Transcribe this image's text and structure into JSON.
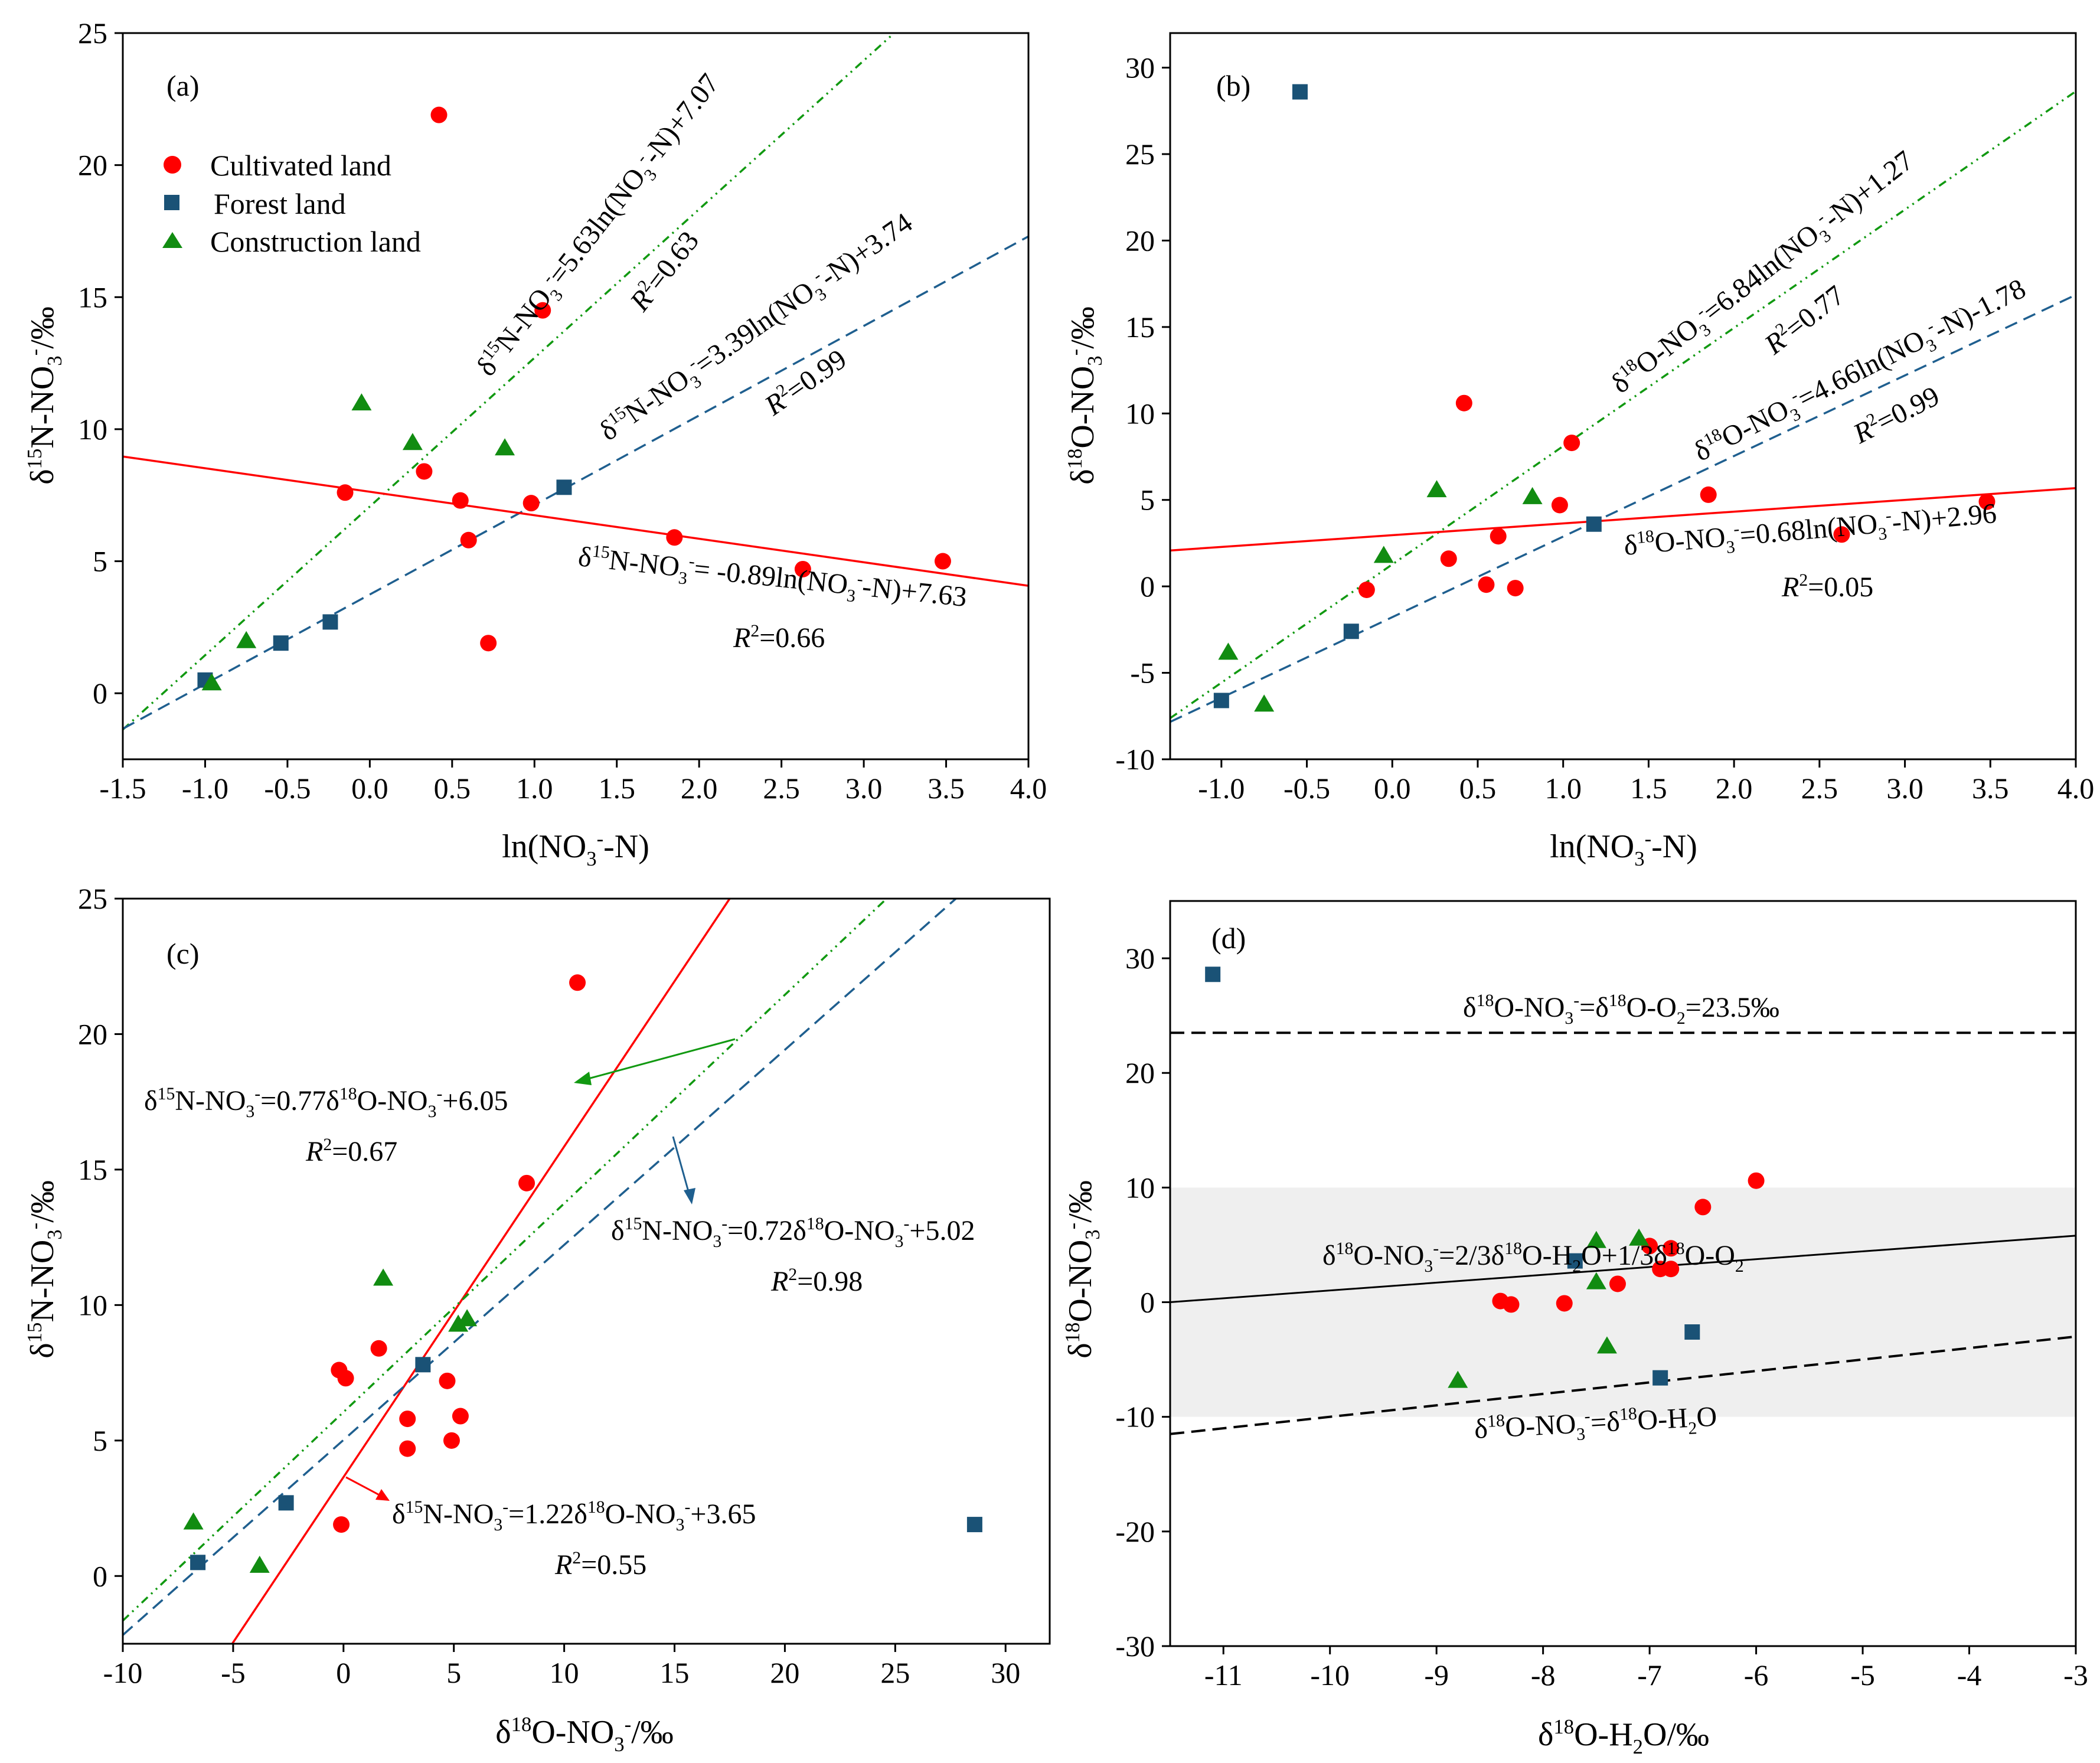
{
  "colors": {
    "cultivated": "#ff0000",
    "forest": "#1a5276",
    "construction": "#118c11",
    "fit_cultivated": "#ff0000",
    "fit_forest": "#1f5f8f",
    "fit_construction": "#119911",
    "shade": "#efefef"
  },
  "legend": [
    {
      "label": "Cultivated land",
      "marker": "circle",
      "key": "cultivated"
    },
    {
      "label": "Forest land",
      "marker": "square",
      "key": "forest"
    },
    {
      "label": "Construction land",
      "marker": "triangle",
      "key": "construction"
    }
  ],
  "chart_data": [
    {
      "panel": "(a)",
      "type": "scatter",
      "xlim": [
        -1.5,
        4.0
      ],
      "ylim": [
        -2.5,
        25
      ],
      "xticks": [
        -1.5,
        -1.0,
        -0.5,
        0.0,
        0.5,
        1.0,
        1.5,
        2.0,
        2.5,
        3.0,
        3.5,
        4.0
      ],
      "xtick_labels": [
        "-1.5",
        "-1.0",
        "-0.5",
        "0.0",
        "0.5",
        "1.0",
        "1.5",
        "2.0",
        "2.5",
        "3.0",
        "3.5",
        "4.0"
      ],
      "yticks": [
        0,
        5,
        10,
        15,
        20,
        25
      ],
      "ytick_labels": [
        "0",
        "5",
        "10",
        "15",
        "20",
        "25"
      ],
      "xlabel": {
        "pre": "ln(NO",
        "sub": "3",
        "sup": "-",
        "post": "-N)"
      },
      "ylabel": {
        "pre": "δ",
        "sup": "15",
        "post": "N-NO",
        "sub": "3",
        "sup2": "-",
        "tail": "/‰"
      },
      "series": [
        {
          "key": "cultivated",
          "points": [
            [
              0.42,
              21.9
            ],
            [
              1.05,
              14.5
            ],
            [
              0.33,
              8.4
            ],
            [
              -0.15,
              7.6
            ],
            [
              0.55,
              7.3
            ],
            [
              0.98,
              7.2
            ],
            [
              0.6,
              5.8
            ],
            [
              1.85,
              5.9
            ],
            [
              2.63,
              4.7
            ],
            [
              3.48,
              5.0
            ],
            [
              0.72,
              1.9
            ]
          ]
        },
        {
          "key": "forest",
          "points": [
            [
              1.18,
              7.8
            ],
            [
              -0.24,
              2.7
            ],
            [
              -0.54,
              1.9
            ],
            [
              -1.0,
              0.5
            ]
          ]
        },
        {
          "key": "construction",
          "points": [
            [
              -0.05,
              11.0
            ],
            [
              0.26,
              9.5
            ],
            [
              0.82,
              9.3
            ],
            [
              -0.75,
              2.0
            ],
            [
              -0.96,
              0.4
            ]
          ]
        }
      ],
      "fits": [
        {
          "key": "construction",
          "slope": 5.63,
          "intercept": 7.07,
          "x_range": [
            -1.5,
            4.0
          ],
          "style": "dashdot",
          "label": {
            "pre": "δ",
            "sup": "15",
            "mid": "N-NO",
            "sub": "3",
            "sup2": "-",
            "eq": "=5.63ln(NO",
            "sub2": "3",
            "sup3": "-",
            "tail": "-N)+7.07"
          },
          "r2": "=0.63"
        },
        {
          "key": "forest",
          "slope": 3.39,
          "intercept": 3.74,
          "x_range": [
            -1.5,
            4.0
          ],
          "style": "dashed",
          "label": {
            "pre": "δ",
            "sup": "15",
            "mid": "N-NO",
            "sub": "3",
            "sup2": "-",
            "eq": "=3.39ln(NO",
            "sub2": "3",
            "sup3": "-",
            "tail": "-N)+3.74"
          },
          "r2": "=0.99"
        },
        {
          "key": "cultivated",
          "slope": -0.89,
          "intercept": 7.63,
          "x_range": [
            -1.5,
            4.0
          ],
          "style": "solid",
          "label": {
            "pre": "δ",
            "sup": "15",
            "mid": "N-NO",
            "sub": "3",
            "sup2": "-",
            "eq": "= -0.89ln(NO",
            "sub2": "3",
            "sup3": "-",
            "tail": "-N)+7.63"
          },
          "r2": "=0.66"
        }
      ]
    },
    {
      "panel": "(b)",
      "type": "scatter",
      "xlim": [
        -1.3,
        4.0
      ],
      "ylim": [
        -10,
        32
      ],
      "xticks": [
        -1.0,
        -0.5,
        0.0,
        0.5,
        1.0,
        1.5,
        2.0,
        2.5,
        3.0,
        3.5,
        4.0
      ],
      "xtick_labels": [
        "-1.0",
        "-0.5",
        "0.0",
        "0.5",
        "1.0",
        "1.5",
        "2.0",
        "2.5",
        "3.0",
        "3.5",
        "4.0"
      ],
      "yticks": [
        -10,
        -5,
        0,
        5,
        10,
        15,
        20,
        25,
        30
      ],
      "ytick_labels": [
        "-10",
        "-5",
        "0",
        "5",
        "10",
        "15",
        "20",
        "25",
        "30"
      ],
      "xlabel": {
        "pre": "ln(NO",
        "sub": "3",
        "sup": "-",
        "post": "-N)"
      },
      "ylabel": {
        "pre": "δ",
        "sup": "18",
        "post": "O-NO",
        "sub": "3",
        "sup2": "-",
        "tail": "/‰"
      },
      "series": [
        {
          "key": "cultivated",
          "points": [
            [
              0.42,
              10.6
            ],
            [
              1.05,
              8.3
            ],
            [
              0.98,
              4.7
            ],
            [
              0.62,
              2.9
            ],
            [
              0.33,
              1.6
            ],
            [
              -0.15,
              -0.2
            ],
            [
              0.55,
              0.1
            ],
            [
              0.72,
              -0.1
            ],
            [
              1.85,
              5.3
            ],
            [
              2.63,
              3.0
            ],
            [
              3.48,
              4.9
            ]
          ]
        },
        {
          "key": "forest",
          "points": [
            [
              -0.54,
              28.6
            ],
            [
              1.18,
              3.6
            ],
            [
              -0.24,
              -2.6
            ],
            [
              -1.0,
              -6.6
            ]
          ]
        },
        {
          "key": "construction",
          "points": [
            [
              0.26,
              5.6
            ],
            [
              0.82,
              5.2
            ],
            [
              -0.05,
              1.8
            ],
            [
              -0.96,
              -3.8
            ],
            [
              -0.75,
              -6.8
            ]
          ]
        }
      ],
      "fits": [
        {
          "key": "construction",
          "slope": 6.84,
          "intercept": 1.27,
          "x_range": [
            -1.3,
            4.0
          ],
          "style": "dashdot",
          "label": {
            "pre": "δ",
            "sup": "18",
            "mid": "O-NO",
            "sub": "3",
            "sup2": "-",
            "eq": "=6.84ln(NO",
            "sub2": "3",
            "sup3": "-",
            "tail": "-N)+1.27"
          },
          "r2": "=0.77"
        },
        {
          "key": "forest",
          "slope": 4.66,
          "intercept": -1.78,
          "x_range": [
            -1.3,
            4.0
          ],
          "style": "dashed",
          "label": {
            "pre": "δ",
            "sup": "18",
            "mid": "O-NO",
            "sub": "3",
            "sup2": "-",
            "eq": "=4.66ln(NO",
            "sub2": "3",
            "sup3": "-",
            "tail": "-N)-1.78"
          },
          "r2": "=0.99"
        },
        {
          "key": "cultivated",
          "slope": 0.68,
          "intercept": 2.96,
          "x_range": [
            -1.3,
            4.0
          ],
          "style": "solid",
          "label": {
            "pre": "δ",
            "sup": "18",
            "mid": "O-NO",
            "sub": "3",
            "sup2": "-",
            "eq": "=0.68ln(NO",
            "sub2": "3",
            "sup3": "-",
            "tail": "-N)+2.96"
          },
          "r2": "=0.05"
        }
      ]
    },
    {
      "panel": "(c)",
      "type": "scatter",
      "xlim": [
        -10,
        32
      ],
      "ylim": [
        -2.5,
        25
      ],
      "xticks": [
        -10,
        -5,
        0,
        5,
        10,
        15,
        20,
        25,
        30
      ],
      "xtick_labels": [
        "-10",
        "-5",
        "0",
        "5",
        "10",
        "15",
        "20",
        "25",
        "30"
      ],
      "yticks": [
        0,
        5,
        10,
        15,
        20,
        25
      ],
      "ytick_labels": [
        "0",
        "5",
        "10",
        "15",
        "20",
        "25"
      ],
      "xlabel": {
        "pre": "δ",
        "sup": "18",
        "post": "O-NO",
        "sub": "3",
        "sup2": "-",
        "tail": "/‰"
      },
      "ylabel": {
        "pre": "δ",
        "sup": "15",
        "post": "N-NO",
        "sub": "3",
        "sup2": "-",
        "tail": "/‰"
      },
      "series": [
        {
          "key": "cultivated",
          "points": [
            [
              10.6,
              21.9
            ],
            [
              8.3,
              14.5
            ],
            [
              1.6,
              8.4
            ],
            [
              -0.2,
              7.6
            ],
            [
              0.1,
              7.3
            ],
            [
              4.7,
              7.2
            ],
            [
              2.9,
              5.8
            ],
            [
              5.3,
              5.9
            ],
            [
              2.9,
              4.7
            ],
            [
              4.9,
              5.0
            ],
            [
              -0.1,
              1.9
            ]
          ]
        },
        {
          "key": "forest",
          "points": [
            [
              3.6,
              7.8
            ],
            [
              -2.6,
              2.7
            ],
            [
              28.6,
              1.9
            ],
            [
              -6.6,
              0.5
            ]
          ]
        },
        {
          "key": "construction",
          "points": [
            [
              1.8,
              11.0
            ],
            [
              5.6,
              9.5
            ],
            [
              5.2,
              9.3
            ],
            [
              -6.8,
              2.0
            ],
            [
              -3.8,
              0.4
            ]
          ]
        }
      ],
      "fits": [
        {
          "key": "cultivated",
          "slope": 1.22,
          "intercept": 3.65,
          "x_range": [
            -10,
            32
          ],
          "style": "solid",
          "label": {
            "pre": "δ",
            "sup": "15",
            "mid": "N-NO",
            "sub": "3",
            "sup2": "-",
            "eq": "=1.22δ",
            "sup3": "18",
            "tail": "O-NO",
            "sub2": "3",
            "sup4": "-",
            "end": "+3.65"
          },
          "r2": "=0.55"
        },
        {
          "key": "construction",
          "slope": 0.77,
          "intercept": 6.05,
          "x_range": [
            -10,
            32
          ],
          "style": "dashdot",
          "label": {
            "pre": "δ",
            "sup": "15",
            "mid": "N-NO",
            "sub": "3",
            "sup2": "-",
            "eq": "=0.77δ",
            "sup3": "18",
            "tail": "O-NO",
            "sub2": "3",
            "sup4": "-",
            "end": "+6.05"
          },
          "r2": "=0.67"
        },
        {
          "key": "forest",
          "slope": 0.72,
          "intercept": 5.02,
          "x_range": [
            -10,
            32
          ],
          "style": "dashed",
          "label": {
            "pre": "δ",
            "sup": "15",
            "mid": "N-NO",
            "sub": "3",
            "sup2": "-",
            "eq": "=0.72δ",
            "sup3": "18",
            "tail": "O-NO",
            "sub2": "3",
            "sup4": "-",
            "end": "+5.02"
          },
          "r2": "=0.98"
        }
      ]
    },
    {
      "panel": "(d)",
      "type": "scatter",
      "xlim": [
        -11.5,
        -3
      ],
      "ylim": [
        -30,
        35
      ],
      "xticks": [
        -11,
        -10,
        -9,
        -8,
        -7,
        -6,
        -5,
        -4,
        -3
      ],
      "xtick_labels": [
        "-11",
        "-10",
        "-9",
        "-8",
        "-7",
        "-6",
        "-5",
        "-4",
        "-3"
      ],
      "yticks": [
        -30,
        -20,
        -10,
        0,
        10,
        20,
        30
      ],
      "ytick_labels": [
        "-30",
        "-20",
        "-10",
        "0",
        "10",
        "20",
        "30"
      ],
      "xlabel": {
        "pre": "δ",
        "sup": "18",
        "post": "O-H",
        "sub": "2",
        "tail": "O/‰"
      },
      "ylabel": {
        "pre": "δ",
        "sup": "18",
        "post": "O-NO",
        "sub": "3",
        "sup2": "-",
        "tail": "/‰"
      },
      "shade_band": [
        -10,
        10
      ],
      "series": [
        {
          "key": "cultivated",
          "points": [
            [
              -6.0,
              10.6
            ],
            [
              -6.5,
              8.3
            ],
            [
              -7.0,
              4.9
            ],
            [
              -6.8,
              4.7
            ],
            [
              -6.9,
              2.9
            ],
            [
              -6.8,
              2.9
            ],
            [
              -7.3,
              1.6
            ],
            [
              -8.4,
              0.1
            ],
            [
              -8.3,
              -0.2
            ],
            [
              -7.8,
              -0.1
            ]
          ]
        },
        {
          "key": "forest",
          "points": [
            [
              -11.1,
              28.6
            ],
            [
              -7.7,
              3.6
            ],
            [
              -6.6,
              -2.6
            ],
            [
              -6.9,
              -6.6
            ]
          ]
        },
        {
          "key": "construction",
          "points": [
            [
              -7.5,
              5.4
            ],
            [
              -7.1,
              5.6
            ],
            [
              -7.5,
              1.8
            ],
            [
              -7.4,
              -3.8
            ],
            [
              -8.8,
              -6.8
            ]
          ]
        }
      ],
      "reference_lines": [
        {
          "name": "o2",
          "y_at_xmin": 23.5,
          "y_at_xmax": 23.5,
          "style": "dashed",
          "label": {
            "pre": "δ",
            "sup": "18",
            "mid": "O-NO",
            "sub": "3",
            "sup2": "-",
            "eq": "=δ",
            "sup3": "18",
            "tail": "O-O",
            "sub2": "2",
            "end": "=23.5‰"
          }
        },
        {
          "name": "mix",
          "y_at_xmin": 0.0,
          "y_at_xmax": 5.8,
          "style": "solid",
          "label": {
            "pre": "δ",
            "sup": "18",
            "mid": "O-NO",
            "sub": "3",
            "sup2": "-",
            "eq": "=2/3δ",
            "sup3": "18",
            "tail": "O-H",
            "sub2": "2",
            "end": "O+1/3δ",
            "sup4": "18",
            "last": "O-O",
            "sub3": "2"
          }
        },
        {
          "name": "h2o",
          "y_at_xmin": -11.5,
          "y_at_xmax": -3.0,
          "style": "dashed",
          "label": {
            "pre": "δ",
            "sup": "18",
            "mid": "O-NO",
            "sub": "3",
            "sup2": "-",
            "eq": "=δ",
            "sup3": "18",
            "tail": "O-H",
            "sub2": "2",
            "end": "O"
          }
        }
      ]
    }
  ]
}
